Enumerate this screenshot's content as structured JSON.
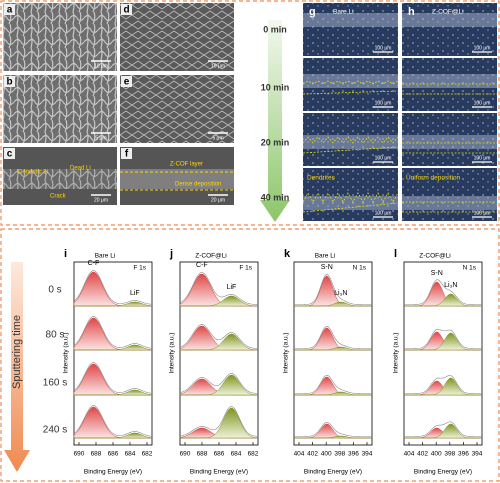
{
  "sem": {
    "panels": [
      {
        "label": "a",
        "scale": "10 μm"
      },
      {
        "label": "b",
        "scale": "5 μm"
      },
      {
        "label": "c",
        "scale": "20 μm",
        "notes": [
          "Dendritic Li",
          "Dead Li",
          "Crack"
        ]
      },
      {
        "label": "d",
        "scale": "10 μm"
      },
      {
        "label": "e",
        "scale": "5 μm"
      },
      {
        "label": "f",
        "scale": "20 μm",
        "notes": [
          "Z-COF layer",
          "Dense deposition"
        ]
      }
    ]
  },
  "optical": {
    "times": [
      "0 min",
      "10 min",
      "20 min",
      "40 min"
    ],
    "scale": "100 μm",
    "columns": [
      {
        "label": "g",
        "title": "Bare Li",
        "note": "Dendrites"
      },
      {
        "label": "h",
        "title": "Z-COF@Li",
        "note": "Uniform deposition"
      }
    ]
  },
  "xps": {
    "axis_title": "Sputtering time",
    "times": [
      "0 s",
      "80 s",
      "160 s",
      "240 s"
    ],
    "x_label": "Binding Energy (eV)",
    "y_label": "Intensity (a.u.)",
    "panels": [
      {
        "label": "i",
        "title": "Bare Li",
        "core": "F 1s",
        "peaks": [
          "C-F",
          "LiF"
        ],
        "ticks": [
          "690",
          "688",
          "686",
          "684",
          "682"
        ]
      },
      {
        "label": "j",
        "title": "Z-COF@Li",
        "core": "F 1s",
        "peaks": [
          "C-F",
          "LiF"
        ],
        "ticks": [
          "690",
          "688",
          "686",
          "684",
          "682"
        ]
      },
      {
        "label": "k",
        "title": "Bare Li",
        "core": "N 1s",
        "peaks": [
          "S-N",
          "Li₃N"
        ],
        "ticks": [
          "404",
          "402",
          "400",
          "398",
          "396",
          "394"
        ]
      },
      {
        "label": "l",
        "title": "Z-COF@Li",
        "core": "N 1s",
        "peaks": [
          "S-N",
          "Li₃N"
        ],
        "ticks": [
          "404",
          "402",
          "400",
          "398",
          "396",
          "394"
        ]
      }
    ]
  }
}
